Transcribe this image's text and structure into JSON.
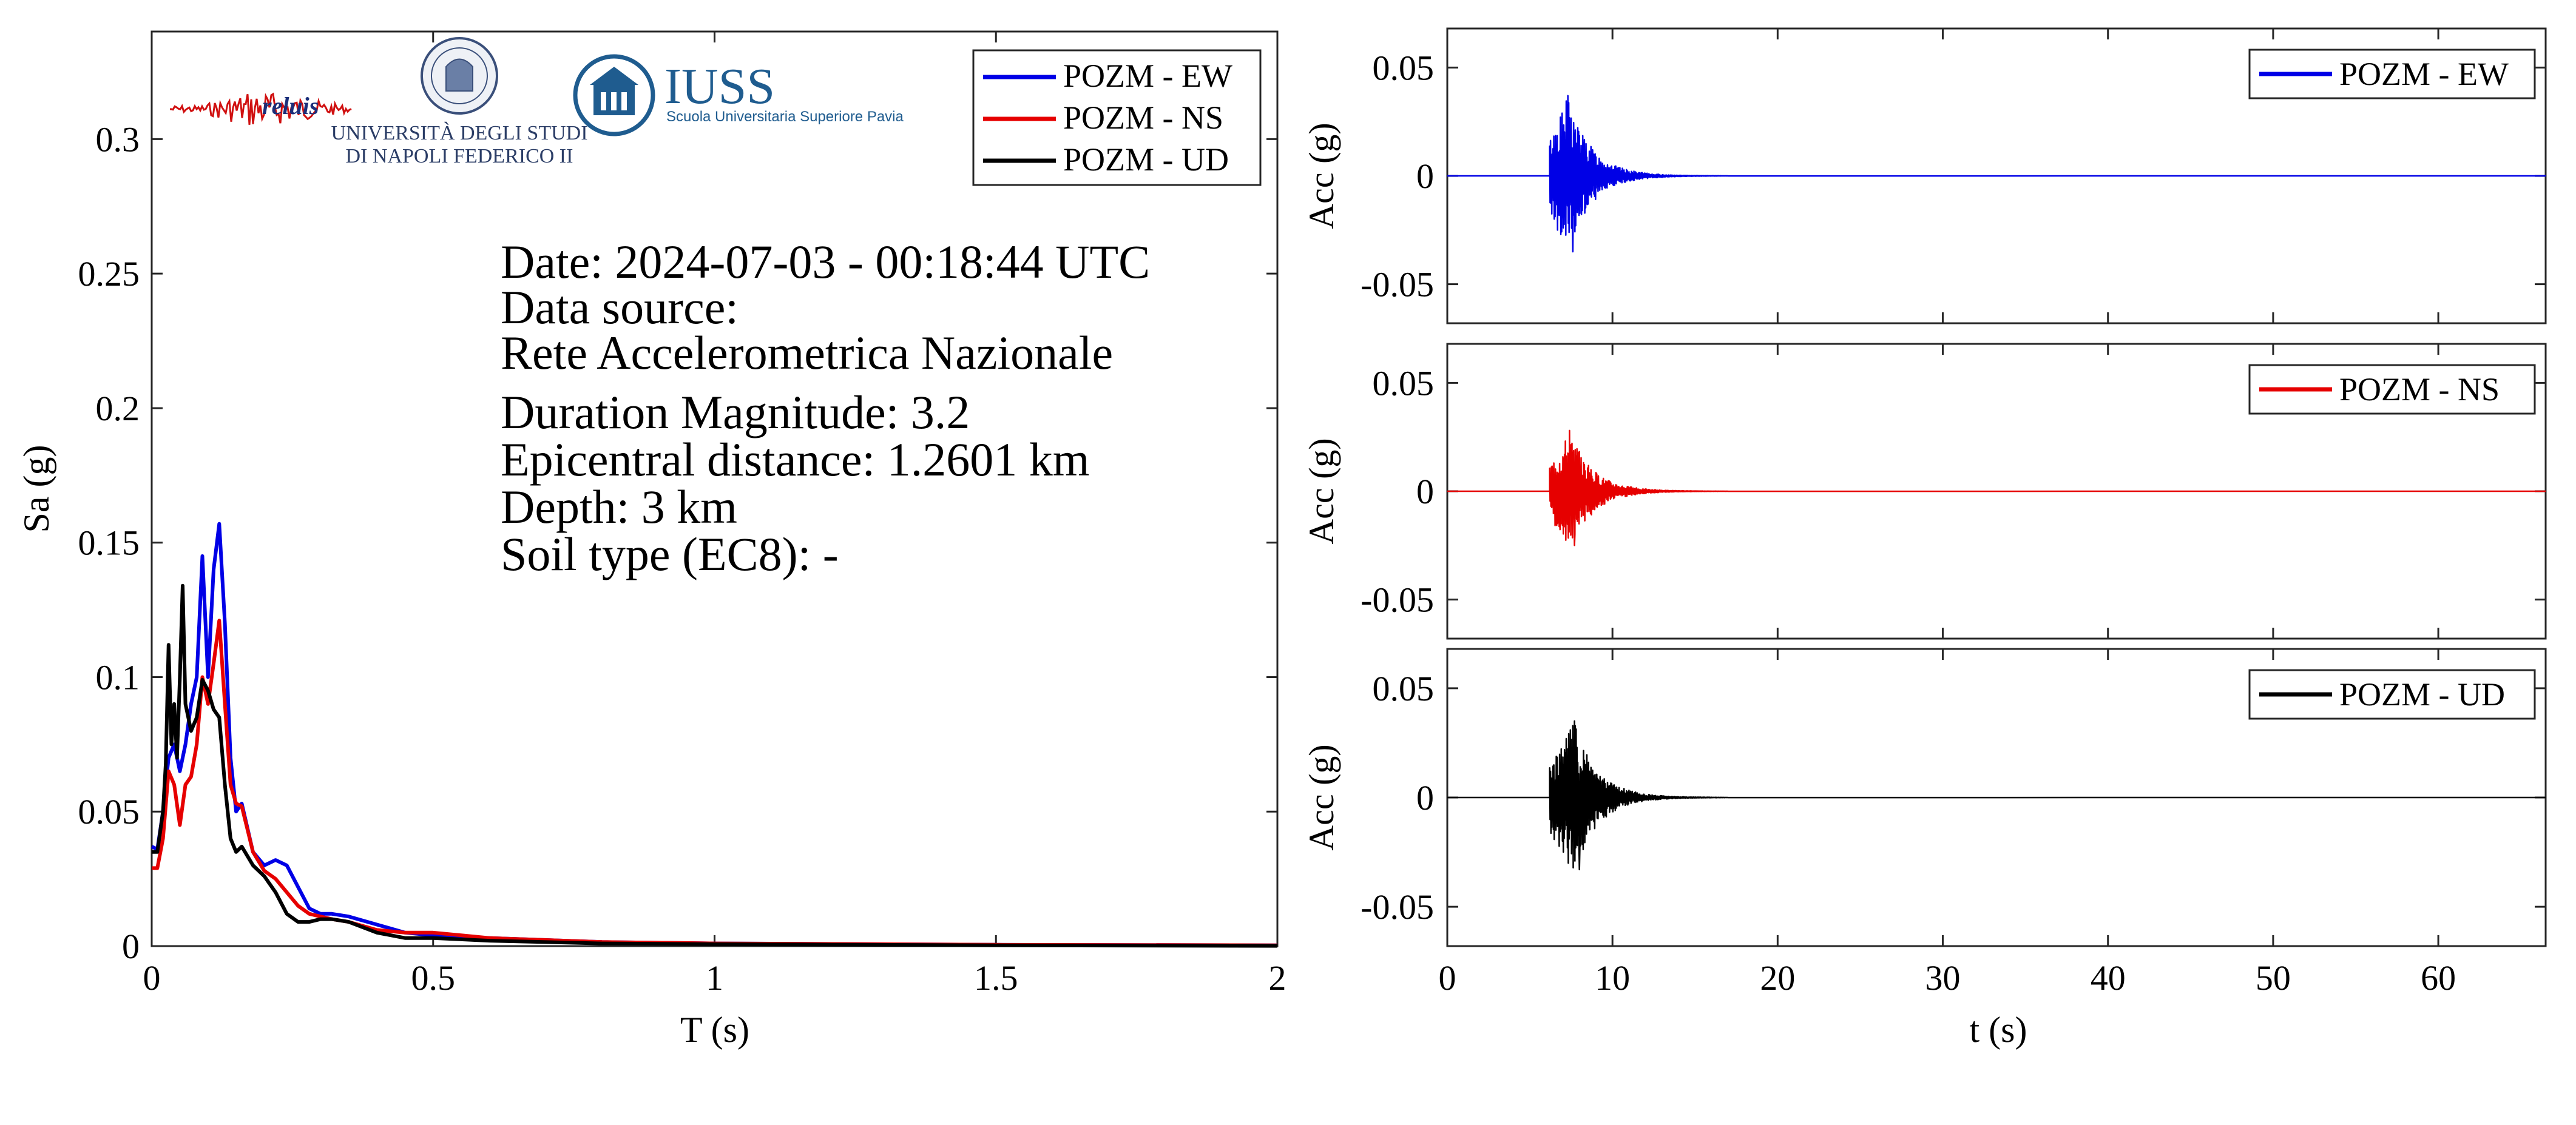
{
  "colors": {
    "ew": "#0000e6",
    "ns": "#e60000",
    "ud": "#000000",
    "iuss": "#1f5c8f"
  },
  "logos": {
    "reluis": "reluis",
    "unina_line1": "UNIVERSITÀ DEGLI STUDI",
    "unina_line2": "DI NAPOLI FEDERICO II",
    "iuss_title": "IUSS",
    "iuss_sub": "Scuola Universitaria Superiore Pavia"
  },
  "info": {
    "date": "Date: 2024-07-03 - 00:18:44 UTC",
    "source_label": "Data source:",
    "source": "Rete Accelerometrica Nazionale",
    "magnitude": "Duration Magnitude: 3.2",
    "distance": "Epicentral distance: 1.2601 km",
    "depth": "Depth: 3 km",
    "soil": "Soil type (EC8): -"
  },
  "chart_data": [
    {
      "type": "line",
      "xlabel": "T (s)",
      "ylabel": "Sa (g)",
      "xlim": [
        0,
        2
      ],
      "ylim": [
        0,
        0.34
      ],
      "xticks": [
        0,
        0.5,
        1,
        1.5,
        2
      ],
      "xtick_labels": [
        "0",
        "0.5",
        "1",
        "1.5",
        "2"
      ],
      "yticks": [
        0,
        0.05,
        0.1,
        0.15,
        0.2,
        0.25,
        0.3
      ],
      "ytick_labels": [
        "0",
        "0.05",
        "0.1",
        "0.15",
        "0.2",
        "0.25",
        "0.3"
      ],
      "legend_position": "top-right",
      "series": [
        {
          "name": "POZM - EW",
          "color": "#0000e6",
          "x": [
            0,
            0.01,
            0.02,
            0.03,
            0.04,
            0.05,
            0.06,
            0.07,
            0.08,
            0.09,
            0.1,
            0.11,
            0.12,
            0.13,
            0.14,
            0.15,
            0.16,
            0.18,
            0.2,
            0.22,
            0.24,
            0.26,
            0.28,
            0.3,
            0.32,
            0.35,
            0.4,
            0.45,
            0.5,
            0.6,
            0.8,
            1.0,
            1.5,
            2.0
          ],
          "y": [
            0.037,
            0.036,
            0.05,
            0.07,
            0.075,
            0.065,
            0.075,
            0.09,
            0.1,
            0.145,
            0.1,
            0.14,
            0.157,
            0.12,
            0.07,
            0.05,
            0.053,
            0.035,
            0.03,
            0.032,
            0.03,
            0.022,
            0.014,
            0.012,
            0.012,
            0.011,
            0.008,
            0.005,
            0.004,
            0.003,
            0.0015,
            0.001,
            0.0005,
            0.0003
          ]
        },
        {
          "name": "POZM - NS",
          "color": "#e60000",
          "x": [
            0,
            0.01,
            0.02,
            0.03,
            0.04,
            0.05,
            0.06,
            0.07,
            0.08,
            0.09,
            0.1,
            0.11,
            0.12,
            0.13,
            0.14,
            0.15,
            0.16,
            0.18,
            0.2,
            0.22,
            0.24,
            0.26,
            0.28,
            0.3,
            0.32,
            0.35,
            0.4,
            0.45,
            0.5,
            0.6,
            0.8,
            1.0,
            1.5,
            2.0
          ],
          "y": [
            0.029,
            0.029,
            0.04,
            0.065,
            0.06,
            0.045,
            0.06,
            0.063,
            0.075,
            0.1,
            0.09,
            0.105,
            0.121,
            0.09,
            0.06,
            0.053,
            0.052,
            0.035,
            0.028,
            0.025,
            0.02,
            0.015,
            0.012,
            0.011,
            0.01,
            0.009,
            0.006,
            0.005,
            0.005,
            0.003,
            0.0015,
            0.001,
            0.0005,
            0.0003
          ]
        },
        {
          "name": "POZM - UD",
          "color": "#000000",
          "x": [
            0,
            0.01,
            0.02,
            0.025,
            0.03,
            0.035,
            0.04,
            0.045,
            0.05,
            0.055,
            0.06,
            0.07,
            0.08,
            0.09,
            0.1,
            0.11,
            0.12,
            0.13,
            0.14,
            0.15,
            0.16,
            0.18,
            0.2,
            0.22,
            0.24,
            0.26,
            0.28,
            0.3,
            0.32,
            0.35,
            0.4,
            0.45,
            0.5,
            0.6,
            0.8,
            1.0,
            1.5,
            2.0
          ],
          "y": [
            0.035,
            0.035,
            0.05,
            0.068,
            0.112,
            0.075,
            0.09,
            0.07,
            0.1,
            0.134,
            0.09,
            0.08,
            0.085,
            0.099,
            0.095,
            0.088,
            0.085,
            0.06,
            0.04,
            0.035,
            0.037,
            0.03,
            0.026,
            0.02,
            0.012,
            0.009,
            0.009,
            0.01,
            0.01,
            0.009,
            0.005,
            0.003,
            0.003,
            0.002,
            0.001,
            0.0007,
            0.0003,
            0.0001
          ]
        }
      ]
    },
    {
      "type": "line",
      "xlabel": "",
      "ylabel": "Acc (g)",
      "xlim": [
        0,
        66.5
      ],
      "ylim": [
        -0.068,
        0.068
      ],
      "yticks": [
        -0.05,
        0,
        0.05
      ],
      "ytick_labels": [
        "-0.05",
        "0",
        "0.05"
      ],
      "xticks": [
        0,
        10,
        20,
        30,
        40,
        50,
        60
      ],
      "legend_position": "top-right",
      "series": [
        {
          "name": "POZM - EW",
          "color": "#0000e6",
          "onset_s": 6.2,
          "peak_s": 7.3,
          "max": 0.037,
          "min": -0.035,
          "decay_end_s": 17
        }
      ]
    },
    {
      "type": "line",
      "xlabel": "",
      "ylabel": "Acc (g)",
      "xlim": [
        0,
        66.5
      ],
      "ylim": [
        -0.068,
        0.068
      ],
      "yticks": [
        -0.05,
        0,
        0.05
      ],
      "ytick_labels": [
        "-0.05",
        "0",
        "0.05"
      ],
      "xticks": [
        0,
        10,
        20,
        30,
        40,
        50,
        60
      ],
      "legend_position": "top-right",
      "series": [
        {
          "name": "POZM - NS",
          "color": "#e60000",
          "onset_s": 6.2,
          "peak_s": 7.4,
          "max": 0.028,
          "min": -0.025,
          "decay_end_s": 17
        }
      ]
    },
    {
      "type": "line",
      "xlabel": "t (s)",
      "ylabel": "Acc (g)",
      "xlim": [
        0,
        66.5
      ],
      "ylim": [
        -0.068,
        0.068
      ],
      "yticks": [
        -0.05,
        0,
        0.05
      ],
      "ytick_labels": [
        "-0.05",
        "0",
        "0.05"
      ],
      "xticks": [
        0,
        10,
        20,
        30,
        40,
        50,
        60
      ],
      "xtick_labels": [
        "0",
        "10",
        "20",
        "30",
        "40",
        "50",
        "60"
      ],
      "legend_position": "top-right",
      "series": [
        {
          "name": "POZM - UD",
          "color": "#000000",
          "onset_s": 6.2,
          "peak_s": 7.7,
          "max": 0.035,
          "min": -0.033,
          "decay_end_s": 17
        }
      ]
    }
  ]
}
